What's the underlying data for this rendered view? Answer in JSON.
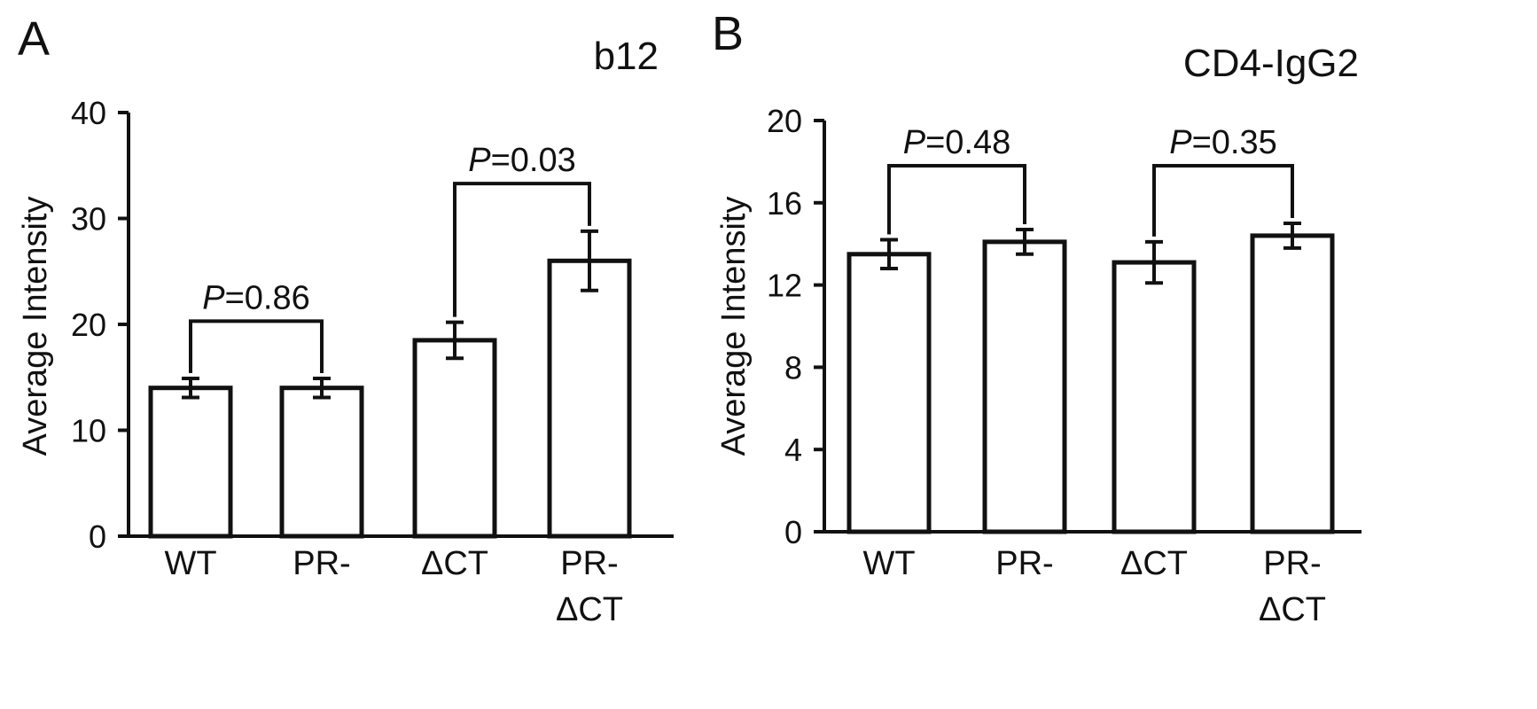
{
  "chart_data": [
    {
      "type": "bar",
      "panel_label": "A",
      "title": "b12",
      "xlabel": "",
      "ylabel": "Average Intensity",
      "ylim": [
        0,
        40
      ],
      "yticks": [
        0,
        10,
        20,
        30,
        40
      ],
      "categories": [
        {
          "lines": [
            "WT"
          ]
        },
        {
          "lines": [
            "PR-"
          ]
        },
        {
          "lines": [
            "ΔCT"
          ]
        },
        {
          "lines": [
            "PR-",
            "ΔCT"
          ]
        }
      ],
      "values": [
        14.0,
        14.0,
        18.5,
        26.0
      ],
      "errors": [
        0.9,
        0.9,
        1.7,
        2.8
      ],
      "comparisons": [
        {
          "from": 0,
          "to": 1,
          "p_symbol": "P",
          "p_text": "=0.86",
          "level": 20.3
        },
        {
          "from": 2,
          "to": 3,
          "p_symbol": "P",
          "p_text": "=0.03",
          "level": 33.3
        }
      ],
      "colors": {
        "bar_fill": "#ffffff",
        "stroke": "#111111"
      }
    },
    {
      "type": "bar",
      "panel_label": "B",
      "title": "CD4-IgG2",
      "xlabel": "",
      "ylabel": "Average Intensity",
      "ylim": [
        0,
        20
      ],
      "yticks": [
        0,
        4,
        8,
        12,
        16,
        20
      ],
      "categories": [
        {
          "lines": [
            "WT"
          ]
        },
        {
          "lines": [
            "PR-"
          ]
        },
        {
          "lines": [
            "ΔCT"
          ]
        },
        {
          "lines": [
            "PR-",
            "ΔCT"
          ]
        }
      ],
      "values": [
        13.5,
        14.1,
        13.1,
        14.4
      ],
      "errors": [
        0.7,
        0.6,
        1.0,
        0.6
      ],
      "comparisons": [
        {
          "from": 0,
          "to": 1,
          "p_symbol": "P",
          "p_text": "=0.48",
          "level": 17.8
        },
        {
          "from": 2,
          "to": 3,
          "p_symbol": "P",
          "p_text": "=0.35",
          "level": 17.8
        }
      ],
      "colors": {
        "bar_fill": "#ffffff",
        "stroke": "#111111"
      }
    }
  ]
}
